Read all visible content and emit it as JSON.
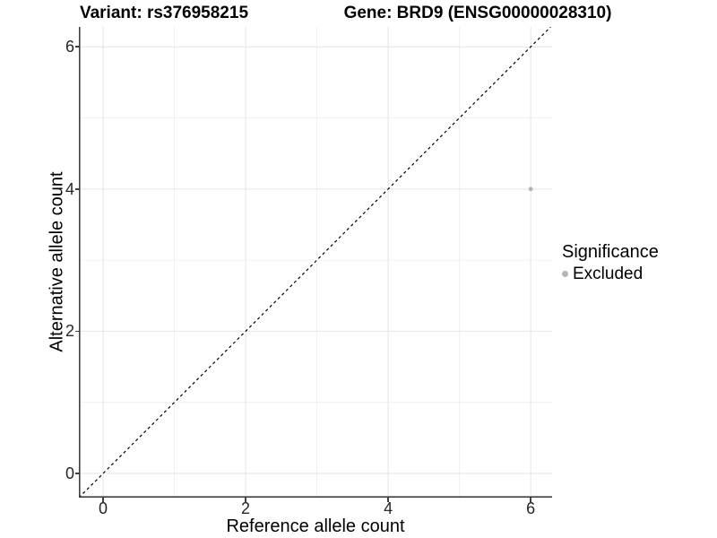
{
  "titles": {
    "variant": "Variant: rs376958215",
    "gene": "Gene: BRD9 (ENSG00000028310)"
  },
  "chart_data": {
    "type": "scatter",
    "title_left": "Variant: rs376958215",
    "title_right": "Gene: BRD9 (ENSG00000028310)",
    "xlabel": "Reference allele count",
    "ylabel": "Alternative allele count",
    "xlim": [
      -0.34,
      6.3
    ],
    "ylim": [
      -0.34,
      6.28
    ],
    "xticks": [
      0,
      2,
      4,
      6
    ],
    "yticks": [
      0,
      2,
      4,
      6
    ],
    "minor_gridlines": [
      1,
      3,
      5
    ],
    "grid": true,
    "identity_line": {
      "from": -0.34,
      "to": 6.28,
      "style": "dashed",
      "color": "#000000"
    },
    "series": [
      {
        "name": "Excluded",
        "color": "#b5b5b5",
        "points": [
          {
            "x": 6,
            "y": 4
          }
        ]
      }
    ],
    "legend": {
      "position": "right",
      "title": "Significance",
      "entries": [
        {
          "label": "Excluded",
          "color": "#b5b5b5"
        }
      ]
    }
  },
  "colors": {
    "background": "#ffffff",
    "grid_major": "#e4e4e4",
    "grid_minor": "#f0f0f0",
    "axis_line": "#404040",
    "tick_text": "#262626",
    "identity_line": "#000000",
    "point": "#b5b5b5"
  }
}
